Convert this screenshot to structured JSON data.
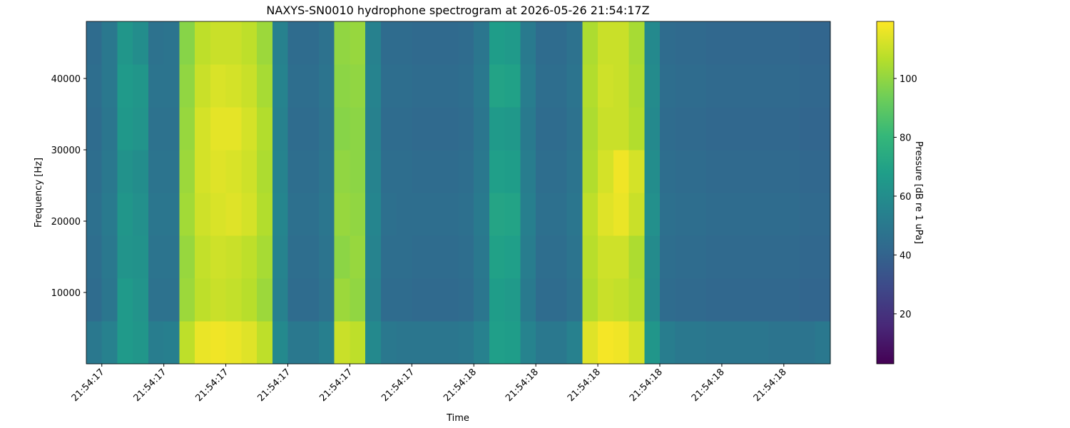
{
  "chart_data": {
    "type": "heatmap",
    "title": "NAXYS-SN0010 hydrophone spectrogram at 2026-05-26 21:54:17Z",
    "xlabel": "Time",
    "ylabel": "Frequency [Hz]",
    "colorbar_label": "Pressure [dB re 1 uPa]",
    "colormap": "viridis",
    "xlim": [
      17.375,
      18.575
    ],
    "ylim": [
      0,
      48000
    ],
    "clim": [
      3,
      119.4
    ],
    "xticks": [
      {
        "value": 17.4,
        "label": "21:54:17"
      },
      {
        "value": 17.5,
        "label": "21:54:17"
      },
      {
        "value": 17.6,
        "label": "21:54:17"
      },
      {
        "value": 17.7,
        "label": "21:54:17"
      },
      {
        "value": 17.8,
        "label": "21:54:17"
      },
      {
        "value": 17.9,
        "label": "21:54:17"
      },
      {
        "value": 18.0,
        "label": "21:54:18"
      },
      {
        "value": 18.1,
        "label": "21:54:18"
      },
      {
        "value": 18.2,
        "label": "21:54:18"
      },
      {
        "value": 18.3,
        "label": "21:54:18"
      },
      {
        "value": 18.4,
        "label": "21:54:18"
      },
      {
        "value": 18.5,
        "label": "21:54:18"
      }
    ],
    "yticks": [
      10000,
      20000,
      30000,
      40000
    ],
    "cticks": [
      20,
      40,
      60,
      80,
      100
    ],
    "x_edges": [
      17.375,
      17.4,
      17.425,
      17.45,
      17.475,
      17.5,
      17.525,
      17.55,
      17.575,
      17.6,
      17.625,
      17.65,
      17.675,
      17.7,
      17.725,
      17.75,
      17.775,
      17.8,
      17.825,
      17.85,
      17.875,
      17.9,
      17.925,
      17.95,
      17.975,
      18,
      18.025,
      18.05,
      18.075,
      18.1,
      18.125,
      18.15,
      18.175,
      18.2,
      18.225,
      18.25,
      18.275,
      18.3,
      18.325,
      18.35,
      18.375,
      18.4,
      18.425,
      18.45,
      18.475,
      18.5,
      18.525,
      18.55,
      18.575
    ],
    "y_edges": [
      0,
      6000,
      12000,
      18000,
      24000,
      30000,
      36000,
      42000,
      48000
    ],
    "z": [
      [
        50,
        54,
        66,
        64,
        52,
        53,
        108,
        116,
        117,
        116,
        114,
        108,
        58,
        50,
        50,
        53,
        110,
        108,
        58,
        50,
        49,
        49,
        49,
        49,
        50,
        54,
        68,
        67,
        55,
        50,
        50,
        54,
        114,
        118,
        117,
        112,
        64,
        52,
        50,
        50,
        49,
        49,
        49,
        49,
        48,
        48,
        48,
        50
      ],
      [
        44,
        49,
        66,
        63,
        47,
        47,
        102,
        108,
        110,
        109,
        107,
        102,
        54,
        44,
        44,
        47,
        102,
        100,
        54,
        44,
        44,
        43,
        43,
        43,
        44,
        49,
        67,
        66,
        51,
        44,
        44,
        47,
        106,
        110,
        109,
        106,
        58,
        44,
        43,
        43,
        42,
        42,
        42,
        42,
        42,
        42,
        41,
        41
      ],
      [
        45,
        50,
        63,
        62,
        48,
        48,
        101,
        109,
        111,
        110,
        108,
        104,
        55,
        45,
        45,
        48,
        99,
        101,
        55,
        45,
        45,
        44,
        44,
        44,
        45,
        50,
        69,
        68,
        52,
        45,
        45,
        48,
        107,
        111,
        111,
        105,
        59,
        45,
        44,
        44,
        43,
        43,
        43,
        43,
        43,
        43,
        42,
        42
      ],
      [
        46,
        51,
        64,
        61,
        49,
        49,
        103,
        111,
        113,
        114,
        112,
        106,
        56,
        46,
        46,
        49,
        101,
        100,
        56,
        46,
        45,
        45,
        45,
        45,
        46,
        51,
        71,
        70,
        53,
        46,
        46,
        49,
        108,
        114,
        116,
        110,
        61,
        46,
        45,
        45,
        44,
        44,
        44,
        44,
        44,
        44,
        43,
        43
      ],
      [
        45,
        50,
        62,
        60,
        48,
        48,
        102,
        112,
        114,
        113,
        111,
        105,
        55,
        45,
        45,
        48,
        100,
        99,
        55,
        45,
        45,
        44,
        44,
        44,
        45,
        50,
        68,
        67,
        52,
        45,
        45,
        48,
        106,
        112,
        117,
        112,
        60,
        45,
        44,
        44,
        43,
        43,
        43,
        43,
        43,
        43,
        42,
        42
      ],
      [
        44,
        49,
        65,
        63,
        47,
        47,
        101,
        112,
        115,
        115,
        112,
        106,
        54,
        44,
        44,
        47,
        98,
        99,
        54,
        44,
        44,
        43,
        43,
        43,
        44,
        49,
        66,
        65,
        51,
        44,
        44,
        47,
        105,
        110,
        110,
        106,
        58,
        44,
        43,
        43,
        42,
        42,
        42,
        42,
        42,
        42,
        41,
        41
      ],
      [
        45,
        50,
        66,
        64,
        48,
        48,
        100,
        110,
        113,
        112,
        110,
        104,
        55,
        45,
        45,
        48,
        99,
        100,
        55,
        45,
        45,
        44,
        44,
        44,
        45,
        50,
        70,
        69,
        52,
        45,
        45,
        48,
        106,
        111,
        110,
        105,
        59,
        45,
        44,
        44,
        43,
        43,
        43,
        43,
        43,
        43,
        42,
        42
      ],
      [
        44,
        50,
        64,
        60,
        47,
        48,
        98,
        108,
        110,
        110,
        108,
        102,
        54,
        44,
        44,
        47,
        100,
        101,
        54,
        44,
        44,
        43,
        43,
        43,
        44,
        49,
        67,
        66,
        51,
        44,
        44,
        47,
        105,
        110,
        110,
        104,
        58,
        44,
        43,
        43,
        42,
        42,
        42,
        42,
        42,
        42,
        41,
        41
      ]
    ]
  }
}
